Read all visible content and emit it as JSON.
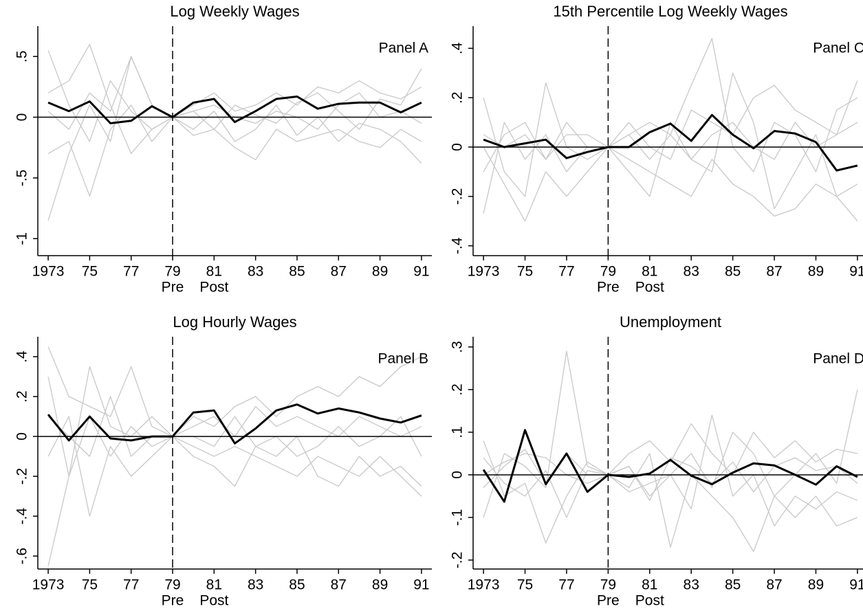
{
  "chart_data": [
    {
      "type": "line",
      "title": "Log Weekly Wages",
      "annotation": "Panel A",
      "pre_label": "Pre",
      "post_label": "Post",
      "x": [
        1973,
        1974,
        1975,
        1976,
        1977,
        1978,
        1979,
        1980,
        1981,
        1982,
        1983,
        1984,
        1985,
        1986,
        1987,
        1988,
        1989,
        1990,
        1991
      ],
      "xlim": [
        1972.5,
        1991.5
      ],
      "xticks": [
        1973,
        {
          "value": 1975,
          "label": "75"
        },
        {
          "value": 1977,
          "label": "77"
        },
        {
          "value": 1979,
          "label": "79"
        },
        {
          "value": 1981,
          "label": "81"
        },
        {
          "value": 1983,
          "label": "83"
        },
        {
          "value": 1985,
          "label": "85"
        },
        {
          "value": 1987,
          "label": "87"
        },
        {
          "value": 1989,
          "label": "89"
        },
        {
          "value": 1991,
          "label": "91"
        }
      ],
      "ylim": [
        -1.14,
        0.75
      ],
      "yticks": [
        {
          "value": -1,
          "label": "-1"
        },
        {
          "value": -0.5,
          "label": "-.5"
        },
        0,
        {
          "value": 0.5,
          "label": ".5"
        }
      ],
      "hline": 0,
      "vline": 1979,
      "series": [
        {
          "color": "#c8c8c8",
          "values": [
            0.55,
            0.1,
            -0.2,
            0.3,
            0.05,
            -0.1,
            0,
            0.05,
            -0.1,
            0.1,
            0.02,
            -0.05,
            0.12,
            0.2,
            0.05,
            -0.1,
            0.15,
            0.1,
            0.4
          ]
        },
        {
          "color": "#c8c8c8",
          "values": [
            -0.85,
            -0.3,
            0.1,
            -0.2,
            0.5,
            0.1,
            0,
            -0.1,
            0.05,
            -0.2,
            -0.1,
            0.1,
            -0.15,
            0.0,
            -0.2,
            -0.05,
            -0.1,
            -0.2,
            -0.38
          ]
        },
        {
          "color": "#c8c8c8",
          "values": [
            0.2,
            0.3,
            0.6,
            0.1,
            -0.3,
            -0.1,
            0,
            0.1,
            0.2,
            0.05,
            0.1,
            0.2,
            0.1,
            0.25,
            0.2,
            0.3,
            0.2,
            0.15,
            0.25
          ]
        },
        {
          "color": "#c8c8c8",
          "values": [
            -0.3,
            -0.2,
            -0.65,
            -0.1,
            0.1,
            -0.2,
            0,
            -0.15,
            -0.1,
            -0.25,
            -0.35,
            -0.1,
            -0.2,
            -0.15,
            -0.1,
            -0.2,
            -0.25,
            -0.1,
            -0.2
          ]
        },
        {
          "color": "#c8c8c8",
          "values": [
            0.05,
            -0.1,
            0.2,
            0.05,
            0.5,
            0.1,
            0,
            0.05,
            0.1,
            0.0,
            -0.05,
            0.05,
            0.0,
            -0.1,
            0.1,
            0.2,
            0.0,
            0.05,
            -0.05
          ]
        },
        {
          "color": "#000000",
          "values": [
            0.12,
            0.05,
            0.13,
            -0.05,
            -0.03,
            0.09,
            0,
            0.12,
            0.15,
            -0.04,
            0.05,
            0.15,
            0.17,
            0.07,
            0.11,
            0.12,
            0.12,
            0.04,
            0.12
          ]
        }
      ]
    },
    {
      "type": "line",
      "title": "15th Percentile Log Weekly Wages",
      "annotation": "Panel C",
      "pre_label": "Pre",
      "post_label": "Post",
      "x": [
        1973,
        1974,
        1975,
        1976,
        1977,
        1978,
        1979,
        1980,
        1981,
        1982,
        1983,
        1984,
        1985,
        1986,
        1987,
        1988,
        1989,
        1990,
        1991
      ],
      "xlim": [
        1972.5,
        1991.5
      ],
      "xticks": [
        1973,
        {
          "value": 1975,
          "label": "75"
        },
        {
          "value": 1977,
          "label": "77"
        },
        {
          "value": 1979,
          "label": "79"
        },
        {
          "value": 1981,
          "label": "81"
        },
        {
          "value": 1983,
          "label": "83"
        },
        {
          "value": 1985,
          "label": "85"
        },
        {
          "value": 1987,
          "label": "87"
        },
        {
          "value": 1989,
          "label": "89"
        },
        {
          "value": 1991,
          "label": "91"
        }
      ],
      "ylim": [
        -0.44,
        0.49
      ],
      "yticks": [
        {
          "value": -0.4,
          "label": "-.4"
        },
        {
          "value": -0.2,
          "label": "-.2"
        },
        0,
        {
          "value": 0.2,
          "label": ".2"
        },
        {
          "value": 0.4,
          "label": ".4"
        }
      ],
      "hline": 0,
      "vline": 1979,
      "series": [
        {
          "color": "#c8c8c8",
          "values": [
            -0.27,
            0.1,
            -0.05,
            0.05,
            -0.1,
            0.0,
            0,
            0.05,
            0.1,
            0.05,
            0.25,
            0.44,
            0.0,
            -0.1,
            0.1,
            0.05,
            -0.1,
            0.15,
            0.2
          ]
        },
        {
          "color": "#c8c8c8",
          "values": [
            0.2,
            -0.1,
            -0.2,
            0.26,
            0.0,
            -0.05,
            0,
            -0.1,
            -0.2,
            0.1,
            -0.05,
            -0.1,
            0.3,
            0.1,
            -0.25,
            -0.1,
            0.05,
            -0.2,
            -0.3
          ]
        },
        {
          "color": "#c8c8c8",
          "values": [
            -0.1,
            0.05,
            0.1,
            -0.05,
            0.05,
            0.05,
            0,
            0.1,
            0.0,
            -0.05,
            0.15,
            0.1,
            0.05,
            0.2,
            0.25,
            0.15,
            0.1,
            0.05,
            0.1
          ]
        },
        {
          "color": "#c8c8c8",
          "values": [
            0.0,
            -0.15,
            -0.3,
            -0.1,
            -0.2,
            -0.1,
            0,
            -0.05,
            -0.1,
            -0.15,
            -0.2,
            -0.05,
            -0.15,
            -0.2,
            -0.28,
            -0.25,
            -0.15,
            -0.2,
            -0.15
          ]
        },
        {
          "color": "#c8c8c8",
          "values": [
            0.05,
            0.0,
            0.05,
            -0.05,
            0.1,
            0.0,
            0,
            0.05,
            -0.05,
            0.05,
            -0.05,
            0.05,
            0.1,
            0.0,
            -0.05,
            0.1,
            0.0,
            0.05,
            0.27
          ]
        },
        {
          "color": "#000000",
          "values": [
            0.03,
            0.0,
            0.015,
            0.03,
            -0.045,
            -0.02,
            0,
            0,
            0.06,
            0.095,
            0.025,
            0.13,
            0.05,
            -0.005,
            0.065,
            0.055,
            0.02,
            -0.095,
            -0.075
          ]
        }
      ]
    },
    {
      "type": "line",
      "title": "Log Hourly Wages",
      "annotation": "Panel B",
      "pre_label": "Pre",
      "post_label": "Post",
      "x": [
        1973,
        1974,
        1975,
        1976,
        1977,
        1978,
        1979,
        1980,
        1981,
        1982,
        1983,
        1984,
        1985,
        1986,
        1987,
        1988,
        1989,
        1990,
        1991
      ],
      "xlim": [
        1972.5,
        1991.5
      ],
      "xticks": [
        1973,
        {
          "value": 1975,
          "label": "75"
        },
        {
          "value": 1977,
          "label": "77"
        },
        {
          "value": 1979,
          "label": "79"
        },
        {
          "value": 1981,
          "label": "81"
        },
        {
          "value": 1983,
          "label": "83"
        },
        {
          "value": 1985,
          "label": "85"
        },
        {
          "value": 1987,
          "label": "87"
        },
        {
          "value": 1989,
          "label": "89"
        },
        {
          "value": 1991,
          "label": "91"
        }
      ],
      "ylim": [
        -0.665,
        0.5
      ],
      "yticks": [
        {
          "value": -0.6,
          "label": "-.6"
        },
        {
          "value": -0.4,
          "label": "-.4"
        },
        {
          "value": -0.2,
          "label": "-.2"
        },
        0,
        {
          "value": 0.2,
          "label": ".2"
        },
        {
          "value": 0.4,
          "label": ".4"
        }
      ],
      "hline": 0,
      "vline": 1979,
      "series": [
        {
          "color": "#c8c8c8",
          "values": [
            -0.65,
            -0.2,
            0.1,
            -0.1,
            0.05,
            -0.05,
            0,
            -0.05,
            -0.1,
            -0.05,
            -0.1,
            -0.15,
            -0.2,
            -0.1,
            -0.15,
            -0.2,
            -0.1,
            -0.2,
            -0.3
          ]
        },
        {
          "color": "#c8c8c8",
          "values": [
            0.45,
            0.2,
            0.15,
            0.1,
            0.35,
            0.05,
            0,
            0.1,
            0.05,
            0.15,
            0.2,
            0.1,
            0.2,
            0.25,
            0.2,
            0.3,
            0.25,
            0.35,
            0.4
          ]
        },
        {
          "color": "#c8c8c8",
          "values": [
            -0.1,
            0.1,
            -0.4,
            -0.05,
            -0.2,
            -0.1,
            0,
            -0.1,
            -0.15,
            -0.25,
            -0.05,
            -0.1,
            0.0,
            -0.2,
            -0.25,
            -0.1,
            -0.2,
            -0.15,
            -0.25
          ]
        },
        {
          "color": "#c8c8c8",
          "values": [
            0.3,
            -0.2,
            0.35,
            0.05,
            0.0,
            0.1,
            0,
            0.05,
            0.1,
            0.0,
            0.15,
            0.05,
            0.1,
            0.05,
            0.0,
            0.1,
            0.05,
            0.0,
            0.05
          ]
        },
        {
          "color": "#c8c8c8",
          "values": [
            0.1,
            0.0,
            -0.1,
            0.2,
            -0.1,
            0.0,
            0,
            0.0,
            -0.05,
            0.1,
            -0.05,
            0.0,
            -0.1,
            -0.05,
            0.05,
            -0.05,
            0.0,
            0.1,
            -0.1
          ]
        },
        {
          "color": "#000000",
          "values": [
            0.11,
            -0.02,
            0.1,
            -0.01,
            -0.02,
            0,
            0,
            0.12,
            0.13,
            -0.035,
            0.04,
            0.13,
            0.16,
            0.115,
            0.14,
            0.12,
            0.09,
            0.07,
            0.105
          ]
        }
      ]
    },
    {
      "type": "line",
      "title": "Unemployment",
      "annotation": "Panel D",
      "pre_label": "Pre",
      "post_label": "Post",
      "x": [
        1973,
        1974,
        1975,
        1976,
        1977,
        1978,
        1979,
        1980,
        1981,
        1982,
        1983,
        1984,
        1985,
        1986,
        1987,
        1988,
        1989,
        1990,
        1991
      ],
      "xlim": [
        1972.5,
        1991.5
      ],
      "xticks": [
        1973,
        {
          "value": 1975,
          "label": "75"
        },
        {
          "value": 1977,
          "label": "77"
        },
        {
          "value": 1979,
          "label": "79"
        },
        {
          "value": 1981,
          "label": "81"
        },
        {
          "value": 1983,
          "label": "83"
        },
        {
          "value": 1985,
          "label": "85"
        },
        {
          "value": 1987,
          "label": "87"
        },
        {
          "value": 1989,
          "label": "89"
        },
        {
          "value": 1991,
          "label": "91"
        }
      ],
      "ylim": [
        -0.221,
        0.324
      ],
      "yticks": [
        {
          "value": -0.2,
          "label": "-.2"
        },
        {
          "value": -0.1,
          "label": "-.1"
        },
        0,
        {
          "value": 0.1,
          "label": ".1"
        },
        {
          "value": 0.2,
          "label": ".2"
        },
        {
          "value": 0.3,
          "label": ".3"
        }
      ],
      "hline": 0,
      "vline": 1979,
      "series": [
        {
          "color": "#c8c8c8",
          "values": [
            -0.1,
            0.05,
            0.02,
            -0.03,
            0.29,
            0.02,
            0,
            0.02,
            -0.05,
            0.0,
            0.05,
            -0.03,
            0.1,
            0.05,
            -0.05,
            0.0,
            0.05,
            -0.02,
            0.2
          ]
        },
        {
          "color": "#c8c8c8",
          "values": [
            0.08,
            -0.05,
            -0.02,
            -0.16,
            -0.05,
            0.03,
            0,
            -0.03,
            0.05,
            -0.17,
            0.0,
            -0.05,
            -0.1,
            -0.18,
            -0.05,
            -0.1,
            -0.05,
            -0.12,
            -0.1
          ]
        },
        {
          "color": "#c8c8c8",
          "values": [
            0.0,
            0.03,
            0.05,
            0.04,
            0.0,
            -0.02,
            0,
            0.05,
            0.08,
            0.03,
            0.12,
            0.05,
            0.0,
            0.1,
            0.04,
            0.08,
            0.03,
            0.06,
            0.05
          ]
        },
        {
          "color": "#c8c8c8",
          "values": [
            0.04,
            -0.02,
            -0.05,
            0.01,
            -0.1,
            0.01,
            0,
            -0.04,
            -0.02,
            0.0,
            -0.08,
            0.14,
            -0.05,
            0.0,
            -0.12,
            -0.05,
            -0.08,
            -0.04,
            -0.06
          ]
        },
        {
          "color": "#c8c8c8",
          "values": [
            -0.03,
            0.02,
            0.06,
            -0.02,
            0.05,
            0.0,
            0,
            0.02,
            -0.06,
            0.04,
            0.02,
            -0.02,
            0.03,
            -0.04,
            0.02,
            0.04,
            0.01,
            0.02,
            -0.02
          ]
        },
        {
          "color": "#000000",
          "values": [
            0.012,
            -0.063,
            0.105,
            -0.022,
            0.05,
            -0.04,
            0,
            -0.005,
            0.003,
            0.035,
            -0.002,
            -0.022,
            0.005,
            0.027,
            0.022,
            0.0,
            -0.023,
            0.02,
            -0.005
          ]
        }
      ]
    }
  ]
}
